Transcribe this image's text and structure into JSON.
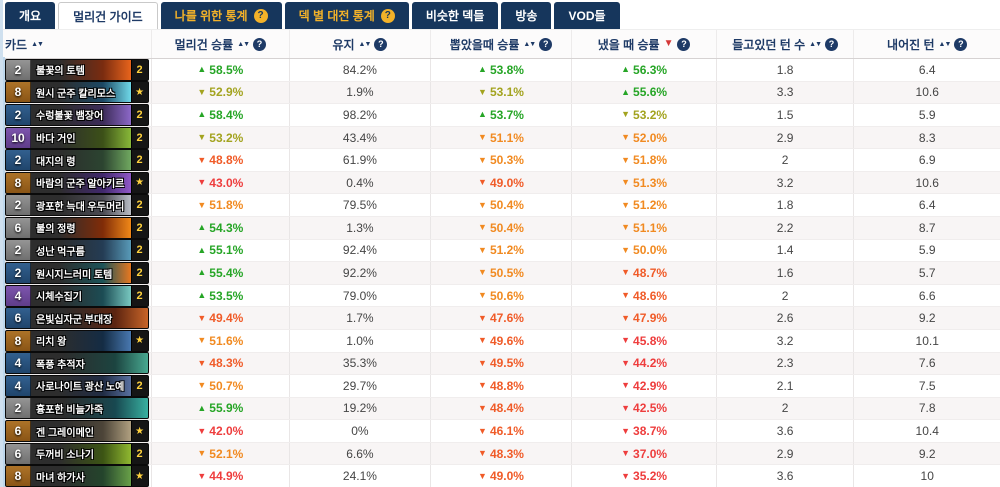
{
  "palette": {
    "tab_bar_navy": "#16365c",
    "tab_gold": "#f3b229",
    "header_text_navy": "#1e3a66",
    "sorted_arrow_red": "#d43838",
    "value_green": "#26a526",
    "value_olive": "#a3a31f",
    "value_orange": "#f18a21",
    "value_orangered": "#f05b28",
    "value_red": "#ee3d3d",
    "count_gold": "#ffd23e",
    "row_alt_bg": "#f8f5f5"
  },
  "tab_bar": {
    "tabs": [
      {
        "label": "개요",
        "style": "dark",
        "help": false
      },
      {
        "label": "멀리건 가이드",
        "style": "active",
        "help": false
      },
      {
        "label": "나를 위한 통계",
        "style": "gold",
        "help": true
      },
      {
        "label": "덱 별 대전 통계",
        "style": "gold",
        "help": true
      },
      {
        "label": "비슷한 덱들",
        "style": "dark",
        "help": false
      },
      {
        "label": "방송",
        "style": "dark",
        "help": false
      },
      {
        "label": "VOD들",
        "style": "dark",
        "help": false
      }
    ]
  },
  "table": {
    "columns": [
      {
        "label": "카드",
        "sort": "sortable",
        "help": false
      },
      {
        "label": "멀리건 승률",
        "sort": "sortable",
        "help": true
      },
      {
        "label": "유지",
        "sort": "sortable",
        "help": true
      },
      {
        "label": "뽑았을때 승률",
        "sort": "sortable",
        "help": true
      },
      {
        "label": "냈을 때 승률",
        "sort": "sorted-desc",
        "help": true
      },
      {
        "label": "들고있던 턴 수",
        "sort": "sortable",
        "help": true
      },
      {
        "label": "내어진 턴",
        "sort": "sortable",
        "help": true
      }
    ],
    "rows": [
      {
        "cost": "2",
        "rarity": "common",
        "name": "불꽃의 토템",
        "count": "2",
        "art": [
          "#7a2c10",
          "#e8641c"
        ],
        "mulligan_wr": {
          "trend": "up",
          "value": "58.5%",
          "tone": "green"
        },
        "kept": "84.2%",
        "drawn_wr": {
          "trend": "up",
          "value": "53.8%",
          "tone": "green"
        },
        "played_wr": {
          "trend": "up",
          "value": "56.3%",
          "tone": "green"
        },
        "turns_held": "1.8",
        "turn_played": "6.4"
      },
      {
        "cost": "8",
        "rarity": "legendary",
        "name": "원시 군주 칼리모스",
        "count": "★",
        "art": [
          "#1c4864",
          "#6fd8e8"
        ],
        "mulligan_wr": {
          "trend": "down",
          "value": "52.9%",
          "tone": "olive"
        },
        "kept": "1.9%",
        "drawn_wr": {
          "trend": "down",
          "value": "53.1%",
          "tone": "olive"
        },
        "played_wr": {
          "trend": "up",
          "value": "55.6%",
          "tone": "green"
        },
        "turns_held": "3.3",
        "turn_played": "10.6"
      },
      {
        "cost": "2",
        "rarity": "rare",
        "name": "수렁불꽃 뱀장어",
        "count": "2",
        "art": [
          "#3c2c58",
          "#8c68c8"
        ],
        "mulligan_wr": {
          "trend": "up",
          "value": "58.4%",
          "tone": "green"
        },
        "kept": "98.2%",
        "drawn_wr": {
          "trend": "up",
          "value": "53.7%",
          "tone": "green"
        },
        "played_wr": {
          "trend": "down",
          "value": "53.2%",
          "tone": "olive"
        },
        "turns_held": "1.5",
        "turn_played": "5.9"
      },
      {
        "cost": "10",
        "rarity": "epic",
        "name": "바다 거인",
        "count": "2",
        "art": [
          "#3c5018",
          "#88b838"
        ],
        "mulligan_wr": {
          "trend": "down",
          "value": "53.2%",
          "tone": "olive"
        },
        "kept": "43.4%",
        "drawn_wr": {
          "trend": "down",
          "value": "51.1%",
          "tone": "orange"
        },
        "played_wr": {
          "trend": "down",
          "value": "52.0%",
          "tone": "orange"
        },
        "turns_held": "2.9",
        "turn_played": "8.3"
      },
      {
        "cost": "2",
        "rarity": "rare",
        "name": "대지의 령",
        "count": "2",
        "art": [
          "#2c4430",
          "#70a860"
        ],
        "mulligan_wr": {
          "trend": "down",
          "value": "48.8%",
          "tone": "orangered"
        },
        "kept": "61.9%",
        "drawn_wr": {
          "trend": "down",
          "value": "50.3%",
          "tone": "orange"
        },
        "played_wr": {
          "trend": "down",
          "value": "51.8%",
          "tone": "orange"
        },
        "turns_held": "2",
        "turn_played": "6.9"
      },
      {
        "cost": "8",
        "rarity": "legendary",
        "name": "바람의 군주 알아키르",
        "count": "★",
        "art": [
          "#40286c",
          "#9058c8"
        ],
        "mulligan_wr": {
          "trend": "down",
          "value": "43.0%",
          "tone": "red"
        },
        "kept": "0.4%",
        "drawn_wr": {
          "trend": "down",
          "value": "49.0%",
          "tone": "orangered"
        },
        "played_wr": {
          "trend": "down",
          "value": "51.3%",
          "tone": "orange"
        },
        "turns_held": "3.2",
        "turn_played": "10.6"
      },
      {
        "cost": "2",
        "rarity": "common",
        "name": "광포한 늑대 우두머리",
        "count": "2",
        "art": [
          "#4a4a52",
          "#b8bcc4"
        ],
        "mulligan_wr": {
          "trend": "down",
          "value": "51.8%",
          "tone": "orange"
        },
        "kept": "79.5%",
        "drawn_wr": {
          "trend": "down",
          "value": "50.4%",
          "tone": "orange"
        },
        "played_wr": {
          "trend": "down",
          "value": "51.2%",
          "tone": "orange"
        },
        "turns_held": "1.8",
        "turn_played": "6.4"
      },
      {
        "cost": "6",
        "rarity": "common",
        "name": "불의 정령",
        "count": "2",
        "art": [
          "#802c08",
          "#f08818"
        ],
        "mulligan_wr": {
          "trend": "up",
          "value": "54.3%",
          "tone": "green"
        },
        "kept": "1.3%",
        "drawn_wr": {
          "trend": "down",
          "value": "50.4%",
          "tone": "orange"
        },
        "played_wr": {
          "trend": "down",
          "value": "51.1%",
          "tone": "orange"
        },
        "turns_held": "2.2",
        "turn_played": "8.7"
      },
      {
        "cost": "2",
        "rarity": "common",
        "name": "성난 먹구름",
        "count": "2",
        "art": [
          "#243c54",
          "#589ab8"
        ],
        "mulligan_wr": {
          "trend": "up",
          "value": "55.1%",
          "tone": "green"
        },
        "kept": "92.4%",
        "drawn_wr": {
          "trend": "down",
          "value": "51.2%",
          "tone": "orange"
        },
        "played_wr": {
          "trend": "down",
          "value": "50.0%",
          "tone": "orange"
        },
        "turns_held": "1.4",
        "turn_played": "5.9"
      },
      {
        "cost": "2",
        "rarity": "rare",
        "name": "원시지느러미 토템",
        "count": "2",
        "art": [
          "#1c5458",
          "#e87820"
        ],
        "mulligan_wr": {
          "trend": "up",
          "value": "55.4%",
          "tone": "green"
        },
        "kept": "92.2%",
        "drawn_wr": {
          "trend": "down",
          "value": "50.5%",
          "tone": "orange"
        },
        "played_wr": {
          "trend": "down",
          "value": "48.7%",
          "tone": "orangered"
        },
        "turns_held": "1.6",
        "turn_played": "5.7"
      },
      {
        "cost": "4",
        "rarity": "epic",
        "name": "시체수집기",
        "count": "2",
        "art": [
          "#1c4c54",
          "#78c8c0"
        ],
        "mulligan_wr": {
          "trend": "up",
          "value": "53.5%",
          "tone": "green"
        },
        "kept": "79.0%",
        "drawn_wr": {
          "trend": "down",
          "value": "50.6%",
          "tone": "orange"
        },
        "played_wr": {
          "trend": "down",
          "value": "48.6%",
          "tone": "orangered"
        },
        "turns_held": "2",
        "turn_played": "6.6"
      },
      {
        "cost": "6",
        "rarity": "rare",
        "name": "은빛십자군 부대장",
        "count": "",
        "art": [
          "#5c2410",
          "#c86428"
        ],
        "mulligan_wr": {
          "trend": "down",
          "value": "49.4%",
          "tone": "orangered"
        },
        "kept": "1.7%",
        "drawn_wr": {
          "trend": "down",
          "value": "47.6%",
          "tone": "orangered"
        },
        "played_wr": {
          "trend": "down",
          "value": "47.9%",
          "tone": "orangered"
        },
        "turns_held": "2.6",
        "turn_played": "9.2"
      },
      {
        "cost": "8",
        "rarity": "legendary",
        "name": "리치 왕",
        "count": "★",
        "art": [
          "#142c44",
          "#4878b0"
        ],
        "mulligan_wr": {
          "trend": "down",
          "value": "51.6%",
          "tone": "orange"
        },
        "kept": "1.0%",
        "drawn_wr": {
          "trend": "down",
          "value": "49.6%",
          "tone": "orangered"
        },
        "played_wr": {
          "trend": "down",
          "value": "45.8%",
          "tone": "red"
        },
        "turns_held": "3.2",
        "turn_played": "10.1"
      },
      {
        "cost": "4",
        "rarity": "rare",
        "name": "폭풍 추적자",
        "count": "",
        "art": [
          "#1c4440",
          "#48a890"
        ],
        "mulligan_wr": {
          "trend": "down",
          "value": "48.3%",
          "tone": "orangered"
        },
        "kept": "35.3%",
        "drawn_wr": {
          "trend": "down",
          "value": "49.5%",
          "tone": "orangered"
        },
        "played_wr": {
          "trend": "down",
          "value": "44.2%",
          "tone": "red"
        },
        "turns_held": "2.3",
        "turn_played": "7.6"
      },
      {
        "cost": "4",
        "rarity": "rare",
        "name": "사로나이트 광산 노예",
        "count": "2",
        "art": [
          "#202c44",
          "#5870a0"
        ],
        "mulligan_wr": {
          "trend": "down",
          "value": "50.7%",
          "tone": "orange"
        },
        "kept": "29.7%",
        "drawn_wr": {
          "trend": "down",
          "value": "48.8%",
          "tone": "orangered"
        },
        "played_wr": {
          "trend": "down",
          "value": "42.9%",
          "tone": "red"
        },
        "turns_held": "2.1",
        "turn_played": "7.5"
      },
      {
        "cost": "2",
        "rarity": "common",
        "name": "흉포한 비늘가죽",
        "count": "",
        "art": [
          "#184850",
          "#38b0a0"
        ],
        "mulligan_wr": {
          "trend": "up",
          "value": "55.9%",
          "tone": "green"
        },
        "kept": "19.2%",
        "drawn_wr": {
          "trend": "down",
          "value": "48.4%",
          "tone": "orangered"
        },
        "played_wr": {
          "trend": "down",
          "value": "42.5%",
          "tone": "red"
        },
        "turns_held": "2",
        "turn_played": "7.8"
      },
      {
        "cost": "6",
        "rarity": "legendary",
        "name": "겐 그레이메인",
        "count": "★",
        "art": [
          "#4c4438",
          "#b0a080"
        ],
        "mulligan_wr": {
          "trend": "down",
          "value": "42.0%",
          "tone": "red"
        },
        "kept": "0%",
        "drawn_wr": {
          "trend": "down",
          "value": "46.1%",
          "tone": "orangered"
        },
        "played_wr": {
          "trend": "down",
          "value": "38.7%",
          "tone": "red"
        },
        "turns_held": "3.6",
        "turn_played": "10.4"
      },
      {
        "cost": "6",
        "rarity": "common",
        "name": "두꺼비 소나기",
        "count": "2",
        "art": [
          "#3c5414",
          "#90b830"
        ],
        "mulligan_wr": {
          "trend": "down",
          "value": "52.1%",
          "tone": "orange"
        },
        "kept": "6.6%",
        "drawn_wr": {
          "trend": "down",
          "value": "48.3%",
          "tone": "orangered"
        },
        "played_wr": {
          "trend": "down",
          "value": "37.0%",
          "tone": "red"
        },
        "turns_held": "2.9",
        "turn_played": "9.2"
      },
      {
        "cost": "8",
        "rarity": "legendary",
        "name": "마녀 하가사",
        "count": "★",
        "art": [
          "#24442c",
          "#68a048"
        ],
        "mulligan_wr": {
          "trend": "down",
          "value": "44.9%",
          "tone": "red"
        },
        "kept": "24.1%",
        "drawn_wr": {
          "trend": "down",
          "value": "49.0%",
          "tone": "orangered"
        },
        "played_wr": {
          "trend": "down",
          "value": "35.2%",
          "tone": "red"
        },
        "turns_held": "3.6",
        "turn_played": "10"
      }
    ]
  }
}
